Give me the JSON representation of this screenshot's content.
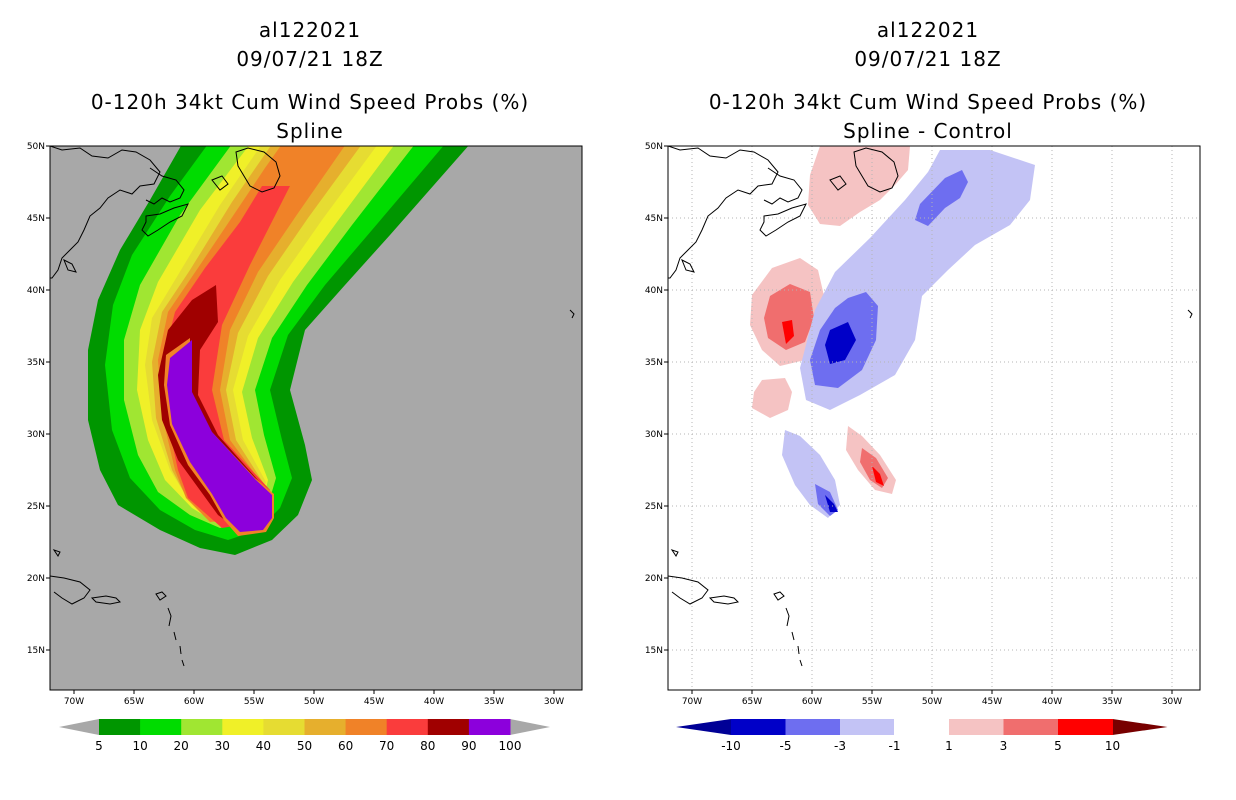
{
  "left_panel": {
    "title_line1": "al122021",
    "title_line2": "09/07/21 18Z",
    "title_line3": "0-120h 34kt Cum Wind Speed Probs (%)",
    "title_line4": "Spline",
    "background_color": "#a8a8a8"
  },
  "right_panel": {
    "title_line1": "al122021",
    "title_line2": "09/07/21 18Z",
    "title_line3": "0-120h 34kt Cum Wind Speed Probs (%)",
    "title_line4": "Spline - Control",
    "background_color": "#ffffff"
  },
  "lon_ticks": [
    "70W",
    "65W",
    "60W",
    "55W",
    "50W",
    "45W",
    "40W",
    "35W",
    "30W"
  ],
  "lat_ticks": [
    "50N",
    "45N",
    "40N",
    "35N",
    "30N",
    "25N",
    "20N",
    "15N"
  ],
  "left_colorbar": {
    "labels": [
      "5",
      "10",
      "20",
      "30",
      "40",
      "50",
      "60",
      "70",
      "80",
      "90",
      "100"
    ],
    "colors": [
      "#009600",
      "#00dc00",
      "#a0e632",
      "#f0f028",
      "#e6dc32",
      "#e6af2d",
      "#f08228",
      "#fa3c3c",
      "#a00000",
      "#8c00dc"
    ],
    "arrow_color": "#a8a8a8"
  },
  "right_colorbar": {
    "labels": [
      "-10",
      "-5",
      "-3",
      "-1",
      "1",
      "3",
      "5",
      "10"
    ],
    "colors": [
      "#0000c8",
      "#6e6ef0",
      "#c3c3f5",
      "#ffffff",
      "#f5c3c3",
      "#f06e6e",
      "#ff0000"
    ],
    "low_arrow_color": "#000096",
    "high_arrow_color": "#780000"
  }
}
